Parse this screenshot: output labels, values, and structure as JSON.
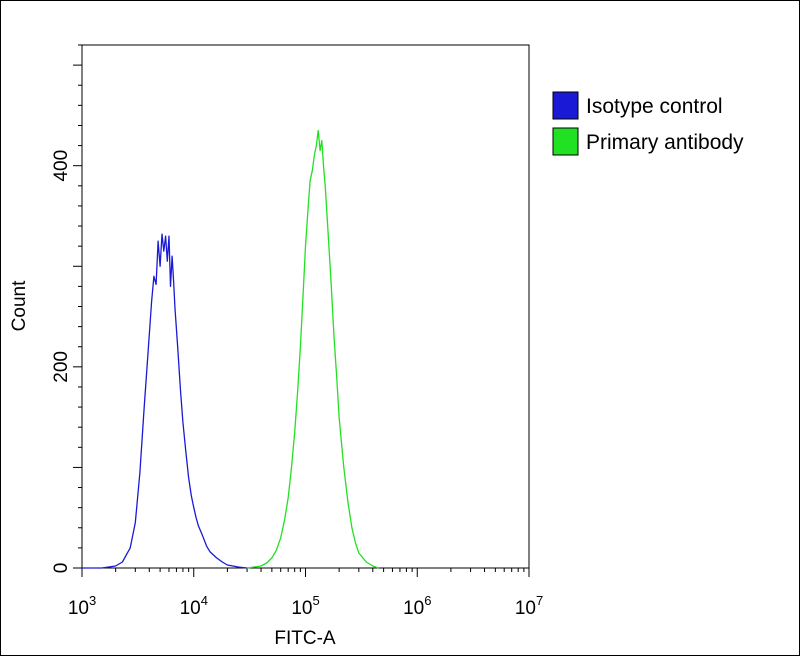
{
  "chart_data": {
    "type": "line",
    "subtype": "flow-cytometry-histogram",
    "xlabel": "FITC-A",
    "ylabel": "Count",
    "xscale": "log",
    "xlim": [
      1000,
      10000000
    ],
    "ylim": [
      0,
      520
    ],
    "x_ticks": [
      {
        "value": 1000,
        "base": "10",
        "exp": "3"
      },
      {
        "value": 10000,
        "base": "10",
        "exp": "4"
      },
      {
        "value": 100000,
        "base": "10",
        "exp": "5"
      },
      {
        "value": 1000000,
        "base": "10",
        "exp": "6"
      },
      {
        "value": 10000000,
        "base": "10",
        "exp": "7"
      }
    ],
    "y_ticks": [
      {
        "value": 0,
        "label": "0"
      },
      {
        "value": 200,
        "label": "200"
      },
      {
        "value": 400,
        "label": "400"
      }
    ],
    "legend": {
      "position": "top-right",
      "entries": [
        {
          "label": "Isotype control",
          "color": "#1a1ad6"
        },
        {
          "label": "Primary antibody",
          "color": "#22e022"
        }
      ]
    },
    "series": [
      {
        "name": "Isotype control",
        "color": "#1a1ad6",
        "x": [
          1000,
          1500,
          2000,
          2300,
          2700,
          3000,
          3300,
          3600,
          3900,
          4200,
          4400,
          4600,
          4800,
          5000,
          5200,
          5400,
          5600,
          5800,
          6000,
          6200,
          6400,
          6600,
          6800,
          7200,
          7600,
          8000,
          8500,
          9000,
          9500,
          10000,
          10500,
          11000,
          12000,
          13000,
          14000,
          16000,
          18000,
          20000,
          25000,
          30000
        ],
        "y": [
          0,
          0,
          2,
          6,
          20,
          45,
          95,
          160,
          215,
          265,
          290,
          282,
          325,
          300,
          332,
          315,
          330,
          305,
          330,
          280,
          310,
          285,
          258,
          218,
          178,
          145,
          115,
          90,
          72,
          60,
          50,
          42,
          32,
          22,
          16,
          10,
          6,
          3,
          1,
          0
        ]
      },
      {
        "name": "Primary antibody",
        "color": "#22e022",
        "x": [
          30000,
          40000,
          45000,
          50000,
          55000,
          60000,
          65000,
          70000,
          75000,
          80000,
          85000,
          90000,
          95000,
          100000,
          105000,
          110000,
          115000,
          120000,
          125000,
          130000,
          135000,
          140000,
          145000,
          150000,
          160000,
          170000,
          180000,
          190000,
          200000,
          220000,
          240000,
          260000,
          280000,
          300000,
          350000,
          400000,
          450000
        ],
        "y": [
          0,
          2,
          5,
          10,
          18,
          30,
          48,
          70,
          100,
          135,
          175,
          220,
          270,
          320,
          355,
          385,
          395,
          410,
          420,
          435,
          415,
          425,
          400,
          380,
          330,
          280,
          230,
          190,
          150,
          100,
          65,
          40,
          25,
          15,
          6,
          2,
          0
        ]
      }
    ]
  }
}
